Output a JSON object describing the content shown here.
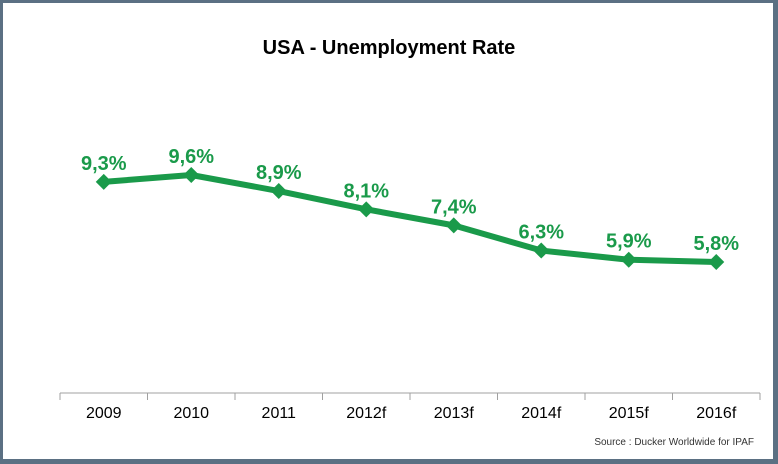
{
  "chart_data": {
    "type": "line",
    "title": "USA - Unemployment Rate",
    "categories": [
      "2009",
      "2010",
      "2011",
      "2012f",
      "2013f",
      "2014f",
      "2015f",
      "2016f"
    ],
    "series": [
      {
        "values": [
          9.3,
          9.6,
          8.9,
          8.1,
          7.4,
          6.3,
          5.9,
          5.8
        ],
        "labels": [
          "9,3%",
          "9,6%",
          "8,9%",
          "8,1%",
          "7,4%",
          "6,3%",
          "5,9%",
          "5,8%"
        ]
      }
    ],
    "grid": false,
    "legend": "none",
    "line_color": "#1a9a4a",
    "label_color": "#1a9a4a"
  },
  "source": "Source : Ducker Worldwide for IPAF"
}
